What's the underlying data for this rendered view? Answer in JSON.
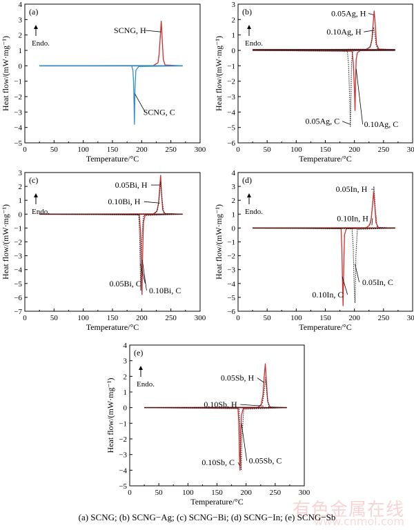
{
  "caption": "(a) SCNG; (b) SCNG−Ag; (c) SCNG−Bi; (d) SCNG−In; (e) SCNG−Sb",
  "watermark": {
    "text": "有色金属在线",
    "url": "www.cnmol.com"
  },
  "colors": {
    "red": "#d42a2a",
    "blue": "#2a8fc8",
    "black": "#222222",
    "axis": "#000000"
  },
  "chart_data": [
    {
      "type": "line",
      "panel_label": "(a)",
      "xlabel": "Temperature/°C",
      "ylabel": "Heat flow/(mW·mg⁻¹)",
      "xlim": [
        0,
        300
      ],
      "ylim": [
        -5,
        4
      ],
      "xticks": [
        0,
        50,
        100,
        150,
        200,
        250,
        300
      ],
      "yticks": [
        -5,
        -4,
        -3,
        -2,
        -1,
        0,
        1,
        2,
        3,
        4
      ],
      "endo_label": "Endo.",
      "series": [
        {
          "name": "SCNG, H",
          "color": "red",
          "style": "solid",
          "baseline": 0.0,
          "x": [
            25,
            220,
            228,
            230,
            232,
            233.5,
            235,
            237,
            240,
            270
          ],
          "y": [
            0.0,
            0.02,
            0.2,
            0.8,
            2.0,
            2.9,
            1.8,
            0.4,
            0.05,
            0.0
          ]
        },
        {
          "name": "SCNG, C",
          "color": "blue",
          "style": "solid",
          "baseline": 0.0,
          "x": [
            25,
            183,
            185,
            186,
            187,
            187.5,
            188.5,
            190,
            195,
            270
          ],
          "y": [
            0.0,
            0.0,
            -0.3,
            -1.0,
            -2.5,
            -3.8,
            -1.5,
            -0.3,
            -0.05,
            0.0
          ]
        }
      ],
      "annotations": [
        {
          "text": "SCNG, H",
          "series": 0,
          "at": [
            233,
            2.2
          ],
          "label_at": [
            180,
            2.3
          ]
        },
        {
          "text": "SCNG, C",
          "series": 1,
          "at": [
            188,
            -1.8
          ],
          "label_at": [
            230,
            -3.0
          ]
        }
      ]
    },
    {
      "type": "line",
      "panel_label": "(b)",
      "xlabel": "Temperature/°C",
      "ylabel": "Heat flow/(mW·mg⁻¹)",
      "xlim": [
        0,
        300
      ],
      "ylim": [
        -6,
        3
      ],
      "xticks": [
        0,
        50,
        100,
        150,
        200,
        250,
        300
      ],
      "yticks": [
        -6,
        -5,
        -4,
        -3,
        -2,
        -1,
        0,
        1,
        2,
        3
      ],
      "endo_label": "Endo.",
      "series": [
        {
          "name": "0.05Ag, H",
          "color": "red",
          "style": "solid",
          "baseline": 0.05,
          "x": [
            25,
            220,
            227,
            230,
            232,
            234,
            236,
            238,
            242,
            270
          ],
          "y": [
            0.05,
            0.07,
            0.2,
            0.7,
            1.7,
            2.55,
            1.6,
            0.4,
            0.08,
            0.05
          ]
        },
        {
          "name": "0.10Ag, H",
          "color": "black",
          "style": "dotted",
          "baseline": 0.05,
          "x": [
            25,
            222,
            228,
            231,
            233,
            235,
            237,
            240,
            270
          ],
          "y": [
            0.05,
            0.07,
            0.3,
            0.9,
            1.5,
            1.1,
            0.4,
            0.08,
            0.05
          ]
        },
        {
          "name": "0.10Ag, C",
          "color": "red",
          "style": "solid",
          "baseline": 0.0,
          "x": [
            25,
            196,
            198,
            200,
            201,
            202,
            203,
            205,
            210,
            270
          ],
          "y": [
            0.0,
            -0.05,
            -0.8,
            -2.5,
            -3.9,
            -2.0,
            -0.6,
            -0.15,
            -0.02,
            0.0
          ]
        },
        {
          "name": "0.05Ag, C",
          "color": "black",
          "style": "dotted",
          "baseline": 0.0,
          "x": [
            25,
            188,
            190,
            192,
            193,
            194,
            195,
            197,
            200,
            270
          ],
          "y": [
            0.0,
            -0.05,
            -1.0,
            -3.2,
            -4.95,
            -3.0,
            -0.8,
            -0.1,
            -0.02,
            0.0
          ]
        }
      ],
      "annotations": [
        {
          "text": "0.05Ag, H",
          "series": 0,
          "at": [
            233,
            2.3
          ],
          "label_at": [
            190,
            2.4
          ]
        },
        {
          "text": "0.10Ag, H",
          "series": 1,
          "at": [
            232,
            1.3
          ],
          "label_at": [
            182,
            1.2
          ]
        },
        {
          "text": "0.10Ag, C",
          "series": 2,
          "at": [
            203,
            -1.2
          ],
          "label_at": [
            246,
            -4.8
          ]
        },
        {
          "text": "0.05Ag, C",
          "series": 3,
          "at": [
            193,
            -4.8
          ],
          "label_at": [
            145,
            -4.6
          ]
        }
      ]
    },
    {
      "type": "line",
      "panel_label": "(c)",
      "xlabel": "Temperature/°C",
      "ylabel": "Heat flow/(mW·mg⁻¹)",
      "xlim": [
        0,
        300
      ],
      "ylim": [
        -7,
        3
      ],
      "xticks": [
        0,
        50,
        100,
        150,
        200,
        250,
        300
      ],
      "yticks": [
        -7,
        -6,
        -5,
        -4,
        -3,
        -2,
        -1,
        0,
        1,
        2,
        3
      ],
      "endo_label": "Endo.",
      "series": [
        {
          "name": "0.05Bi, H",
          "color": "red",
          "style": "solid",
          "baseline": 0.0,
          "x": [
            25,
            220,
            226,
            229,
            231,
            232.5,
            234,
            236,
            240,
            270
          ],
          "y": [
            0.0,
            0.02,
            0.2,
            0.8,
            2.0,
            2.8,
            1.5,
            0.3,
            0.03,
            0.0
          ]
        },
        {
          "name": "0.10Bi, H",
          "color": "black",
          "style": "dotted",
          "baseline": 0.0,
          "x": [
            25,
            222,
            227,
            230,
            232.5,
            235,
            238,
            270
          ],
          "y": [
            0.0,
            0.02,
            0.3,
            1.2,
            2.3,
            1.0,
            0.05,
            0.0
          ]
        },
        {
          "name": "0.10Bi, C",
          "color": "red",
          "style": "solid",
          "baseline": 0.0,
          "x": [
            25,
            196,
            198,
            199.5,
            200.5,
            201.5,
            203,
            206,
            270
          ],
          "y": [
            0.0,
            -0.05,
            -1.2,
            -4.0,
            -5.8,
            -3.2,
            -0.6,
            -0.05,
            0.0
          ]
        },
        {
          "name": "0.05Bi, C",
          "color": "black",
          "style": "dotted",
          "baseline": 0.0,
          "x": [
            25,
            195,
            196.5,
            197.5,
            198.5,
            200,
            203,
            270
          ],
          "y": [
            0.0,
            -0.05,
            -1.5,
            -4.0,
            -5.5,
            -2.0,
            -0.1,
            0.0
          ]
        }
      ],
      "annotations": [
        {
          "text": "0.05Bi, H",
          "series": 0,
          "at": [
            231,
            2.1
          ],
          "label_at": [
            182,
            2.1
          ]
        },
        {
          "text": "0.10Bi, H",
          "series": 1,
          "at": [
            231,
            0.8
          ],
          "label_at": [
            170,
            0.9
          ]
        },
        {
          "text": "0.05Bi, C",
          "series": 3,
          "at": [
            198,
            -3.6
          ],
          "label_at": [
            172,
            -5.0
          ]
        },
        {
          "text": "0.10Bi, C",
          "series": 2,
          "at": [
            201,
            -3.3
          ],
          "label_at": [
            240,
            -5.5
          ]
        }
      ]
    },
    {
      "type": "line",
      "panel_label": "(d)",
      "xlabel": "Temperature/°C",
      "ylabel": "Heat flow/(mW·mg⁻¹)",
      "xlim": [
        0,
        300
      ],
      "ylim": [
        -6,
        4
      ],
      "xticks": [
        0,
        50,
        100,
        150,
        200,
        250,
        300
      ],
      "yticks": [
        -6,
        -5,
        -4,
        -3,
        -2,
        -1,
        0,
        1,
        2,
        3,
        4
      ],
      "endo_label": "Endo.",
      "series": [
        {
          "name": "0.05In, H",
          "color": "black",
          "style": "dotted",
          "baseline": 0.0,
          "x": [
            25,
            222,
            228,
            231,
            233.5,
            236,
            239,
            270
          ],
          "y": [
            0.0,
            0.02,
            0.4,
            1.6,
            3.0,
            1.3,
            0.05,
            0.0
          ]
        },
        {
          "name": "0.10In, H",
          "color": "red",
          "style": "solid",
          "baseline": 0.0,
          "x": [
            25,
            220,
            226,
            229,
            231.5,
            233,
            235,
            237,
            241,
            270
          ],
          "y": [
            0.0,
            0.02,
            0.2,
            0.7,
            1.8,
            2.6,
            1.6,
            0.4,
            0.03,
            0.0
          ]
        },
        {
          "name": "0.10In, C",
          "color": "red",
          "style": "solid",
          "baseline": 0.0,
          "x": [
            25,
            177,
            178.5,
            179.5,
            180.5,
            181.5,
            183,
            186,
            270
          ],
          "y": [
            0.0,
            -0.05,
            -1.5,
            -4.0,
            -5.6,
            -3.0,
            -0.5,
            -0.05,
            0.0
          ]
        },
        {
          "name": "0.05In, C",
          "color": "black",
          "style": "dotted",
          "baseline": 0.0,
          "x": [
            25,
            196,
            198,
            199.5,
            201,
            202.5,
            205,
            270
          ],
          "y": [
            0.0,
            -0.05,
            -1.5,
            -4.0,
            -5.4,
            -2.0,
            -0.1,
            0.0
          ]
        }
      ],
      "annotations": [
        {
          "text": "0.05In, H",
          "series": 0,
          "at": [
            232,
            2.8
          ],
          "label_at": [
            195,
            2.8
          ]
        },
        {
          "text": "0.10In, H",
          "series": 1,
          "at": [
            230,
            0.2
          ],
          "label_at": [
            197,
            0.7
          ]
        },
        {
          "text": "0.10In, C",
          "series": 2,
          "at": [
            179,
            -3.5
          ],
          "label_at": [
            154,
            -4.8
          ]
        },
        {
          "text": "0.05In, C",
          "series": 3,
          "at": [
            201,
            -2.6
          ],
          "label_at": [
            240,
            -3.9
          ]
        }
      ]
    },
    {
      "type": "line",
      "panel_label": "(e)",
      "xlabel": "Temperature/°C",
      "ylabel": "Heat flow/(mW·mg⁻¹)",
      "xlim": [
        0,
        300
      ],
      "ylim": [
        -5,
        4
      ],
      "xticks": [
        0,
        50,
        100,
        150,
        200,
        250,
        300
      ],
      "yticks": [
        -5,
        -4,
        -3,
        -2,
        -1,
        0,
        1,
        2,
        3,
        4
      ],
      "endo_label": "Endo.",
      "series": [
        {
          "name": "0.05Sb, H",
          "color": "red",
          "style": "solid",
          "baseline": 0.0,
          "x": [
            25,
            220,
            226,
            229,
            231,
            233,
            235,
            237,
            241,
            270
          ],
          "y": [
            0.0,
            0.02,
            0.2,
            0.8,
            1.9,
            2.8,
            1.6,
            0.4,
            0.03,
            0.0
          ]
        },
        {
          "name": "0.10Sb, H",
          "color": "black",
          "style": "dotted",
          "baseline": 0.0,
          "x": [
            25,
            222,
            228,
            231,
            233.5,
            236,
            239,
            270
          ],
          "y": [
            0.0,
            0.02,
            0.3,
            1.0,
            1.9,
            0.8,
            0.05,
            0.0
          ]
        },
        {
          "name": "0.05Sb, C",
          "color": "red",
          "style": "solid",
          "baseline": 0.0,
          "x": [
            25,
            186,
            187.5,
            188.5,
            189.5,
            190.5,
            192,
            195,
            270
          ],
          "y": [
            0.0,
            -0.05,
            -1.0,
            -3.0,
            -4.0,
            -2.2,
            -0.5,
            -0.05,
            0.0
          ]
        },
        {
          "name": "0.10Sb, C",
          "color": "black",
          "style": "dotted",
          "baseline": 0.0,
          "x": [
            25,
            188,
            189.5,
            190.5,
            191.5,
            193,
            196,
            270
          ],
          "y": [
            0.0,
            -0.05,
            -1.3,
            -3.0,
            -4.0,
            -1.8,
            -0.1,
            0.0
          ]
        }
      ],
      "annotations": [
        {
          "text": "0.05Sb, H",
          "series": 0,
          "at": [
            231,
            1.6
          ],
          "label_at": [
            185,
            1.9
          ]
        },
        {
          "text": "0.10Sb, H",
          "series": 1,
          "at": [
            230,
            0.1
          ],
          "label_at": [
            156,
            0.2
          ]
        },
        {
          "text": "0.05Sb, C",
          "series": 2,
          "at": [
            192,
            -1.0
          ],
          "label_at": [
            233,
            -3.4
          ]
        },
        {
          "text": "0.10Sb, C",
          "series": 3,
          "at": [
            189,
            -3.7
          ],
          "label_at": [
            152,
            -3.5
          ]
        }
      ]
    }
  ]
}
